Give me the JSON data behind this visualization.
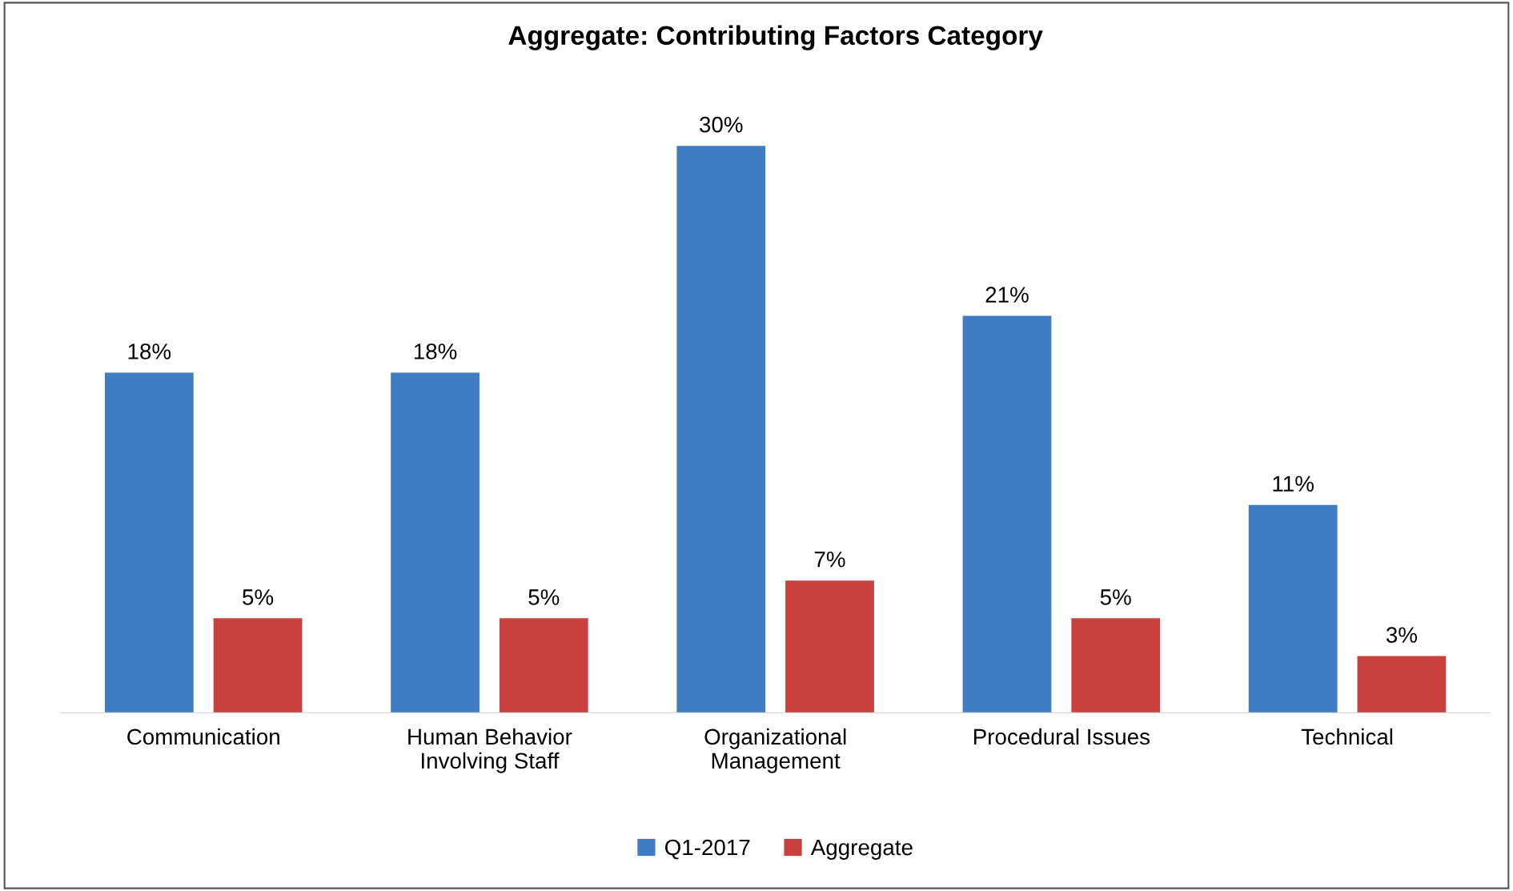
{
  "chart_data": {
    "type": "bar",
    "title": "Aggregate: Contributing Factors Category",
    "categories": [
      "Communication",
      "Human Behavior\nInvolving Staff",
      "Organizational\nManagement",
      "Procedural Issues",
      "Technical"
    ],
    "series": [
      {
        "name": "Q1-2017",
        "color": "#3f7cc4",
        "values": [
          18,
          18,
          30,
          21,
          11
        ],
        "value_labels": [
          "18%",
          "18%",
          "30%",
          "21%",
          "11%"
        ]
      },
      {
        "name": "Aggregate",
        "color": "#c8413c",
        "values": [
          5,
          5,
          7,
          5,
          3
        ],
        "value_labels": [
          "5%",
          "5%",
          "7%",
          "5%",
          "3%"
        ]
      }
    ],
    "legend": "bottom",
    "grid": false
  }
}
